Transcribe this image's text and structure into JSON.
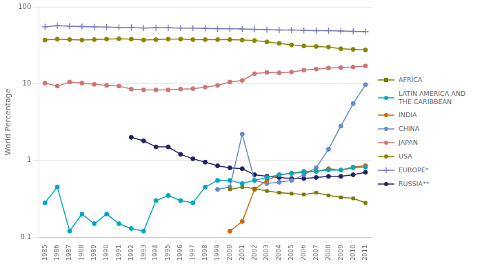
{
  "chart_data": {
    "type": "line",
    "ylabel": "World Percentage",
    "x": [
      1985,
      1986,
      1987,
      1988,
      1989,
      1990,
      1991,
      1992,
      1993,
      1994,
      1995,
      1996,
      1997,
      1998,
      1999,
      2000,
      2001,
      2002,
      2003,
      2004,
      2005,
      2006,
      2007,
      2008,
      2009,
      2010,
      2011
    ],
    "series": [
      {
        "name": "AFRICA",
        "color": "#7a7a00",
        "marker": "square",
        "values": [
          null,
          null,
          null,
          null,
          null,
          null,
          null,
          null,
          null,
          null,
          null,
          null,
          null,
          null,
          null,
          0.42,
          0.45,
          0.43,
          0.4,
          0.38,
          0.37,
          0.36,
          0.38,
          0.35,
          0.33,
          0.32,
          0.28
        ]
      },
      {
        "name": "LATIN AMERICA AND\nTHE CARIBBEAN",
        "color": "#00a8c0",
        "marker": "circle",
        "values": [
          0.28,
          0.45,
          0.12,
          0.2,
          0.15,
          0.2,
          0.15,
          0.13,
          0.12,
          0.3,
          0.35,
          0.3,
          0.28,
          0.45,
          0.55,
          0.55,
          0.5,
          0.55,
          0.6,
          0.65,
          0.68,
          0.7,
          0.72,
          0.75,
          0.75,
          0.8,
          0.82
        ]
      },
      {
        "name": "INDIA",
        "color": "#cc6600",
        "marker": "circle",
        "values": [
          null,
          null,
          null,
          null,
          null,
          null,
          null,
          null,
          null,
          null,
          null,
          null,
          null,
          null,
          null,
          0.12,
          0.16,
          0.42,
          0.55,
          0.65,
          0.68,
          0.72,
          0.72,
          0.78,
          0.75,
          0.82,
          0.85
        ]
      },
      {
        "name": "CHINA",
        "color": "#6688cc",
        "marker": "circle",
        "values": [
          null,
          null,
          null,
          null,
          null,
          null,
          null,
          null,
          null,
          null,
          null,
          null,
          null,
          null,
          0.42,
          0.45,
          2.2,
          0.55,
          0.5,
          0.52,
          0.55,
          0.65,
          0.8,
          1.4,
          2.8,
          5.5,
          9.7
        ]
      },
      {
        "name": "JAPAN",
        "color": "#cc7777",
        "marker": "circle",
        "values": [
          10.2,
          9.3,
          10.5,
          10.2,
          9.8,
          9.5,
          9.3,
          8.5,
          8.3,
          8.3,
          8.3,
          8.5,
          8.6,
          9.0,
          9.5,
          10.5,
          11.0,
          13.5,
          14.0,
          13.8,
          14.2,
          15.0,
          15.5,
          16.0,
          16.2,
          16.5,
          17.0
        ]
      },
      {
        "name": "USA",
        "color": "#888800",
        "marker": "circle",
        "values": [
          37,
          38,
          37.5,
          37,
          37.5,
          38,
          38.5,
          38,
          37,
          37.5,
          38,
          38,
          37.5,
          37.5,
          37.5,
          37.5,
          37.0,
          36.5,
          35.0,
          33.5,
          32.0,
          31.0,
          30.5,
          30.0,
          28.5,
          28.0,
          27.5
        ]
      },
      {
        "name": "EUROPE*",
        "color": "#7777bb",
        "marker": "plus",
        "values": [
          55,
          57,
          56,
          55.5,
          55,
          54.5,
          54,
          54,
          53,
          53.5,
          53.5,
          53,
          53,
          52.5,
          52,
          52,
          51.5,
          51,
          50.5,
          50,
          50,
          49.5,
          49,
          49,
          48.5,
          48,
          47.5
        ]
      },
      {
        "name": "RUSSIA**",
        "color": "#222266",
        "marker": "circle",
        "values": [
          null,
          null,
          null,
          null,
          null,
          null,
          null,
          2.0,
          1.8,
          1.5,
          1.5,
          1.2,
          1.05,
          0.95,
          0.85,
          0.8,
          0.78,
          0.65,
          0.62,
          0.6,
          0.58,
          0.58,
          0.6,
          0.62,
          0.62,
          0.65,
          0.7
        ]
      }
    ],
    "xlim": [
      1984.5,
      2011.5
    ],
    "xticks": [
      1985,
      1986,
      1987,
      1988,
      1989,
      1990,
      1991,
      1992,
      1993,
      1994,
      1995,
      1996,
      1997,
      1998,
      1999,
      2000,
      2001,
      2002,
      2003,
      2004,
      2005,
      2006,
      2007,
      2008,
      2009,
      2010,
      2011
    ],
    "ylim": [
      0.1,
      100
    ],
    "yticks": [
      0.1,
      1,
      10,
      100
    ],
    "log": "y",
    "grid": "y",
    "legend": "right"
  }
}
